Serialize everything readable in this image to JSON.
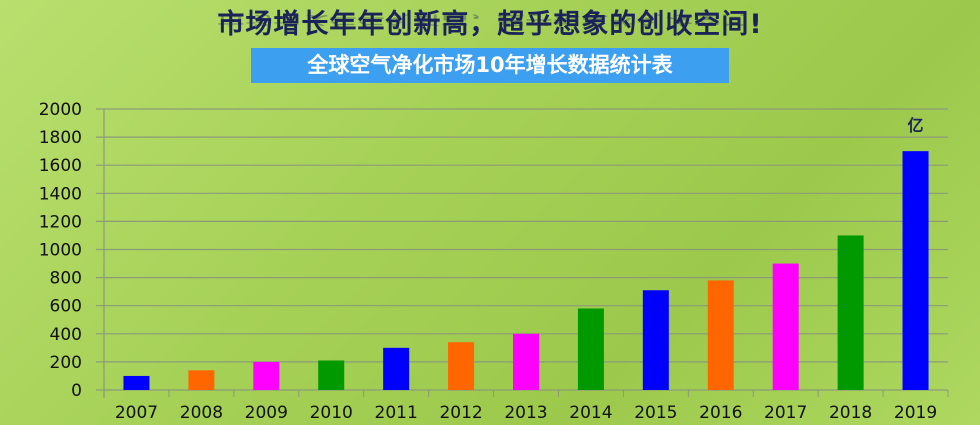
{
  "header": {
    "title": "市场增长年年创新高，超乎想象的创收空间!",
    "subtitle": "全球空气净化市场10年增长数据统计表"
  },
  "chart_data": {
    "type": "bar",
    "title": "全球空气净化市场10年增长数据统计表",
    "unit_label": "亿",
    "categories": [
      "2007",
      "2008",
      "2009",
      "2010",
      "2011",
      "2012",
      "2013",
      "2014",
      "2015",
      "2016",
      "2017",
      "2018",
      "2019"
    ],
    "values": [
      100,
      140,
      200,
      210,
      300,
      340,
      400,
      580,
      710,
      780,
      900,
      1100,
      1700
    ],
    "colors": [
      "#0000ff",
      "#ff6600",
      "#ff00ff",
      "#009900",
      "#0000ff",
      "#ff6600",
      "#ff00ff",
      "#009900",
      "#0000ff",
      "#ff6600",
      "#ff00ff",
      "#009900",
      "#0000ff"
    ],
    "yticks": [
      "0",
      "200",
      "400",
      "600",
      "800",
      "1000",
      "1200",
      "1400",
      "1600",
      "1800",
      "2000"
    ],
    "ylim": [
      0,
      2000
    ],
    "grid": true,
    "xlabel": "",
    "ylabel": ""
  }
}
